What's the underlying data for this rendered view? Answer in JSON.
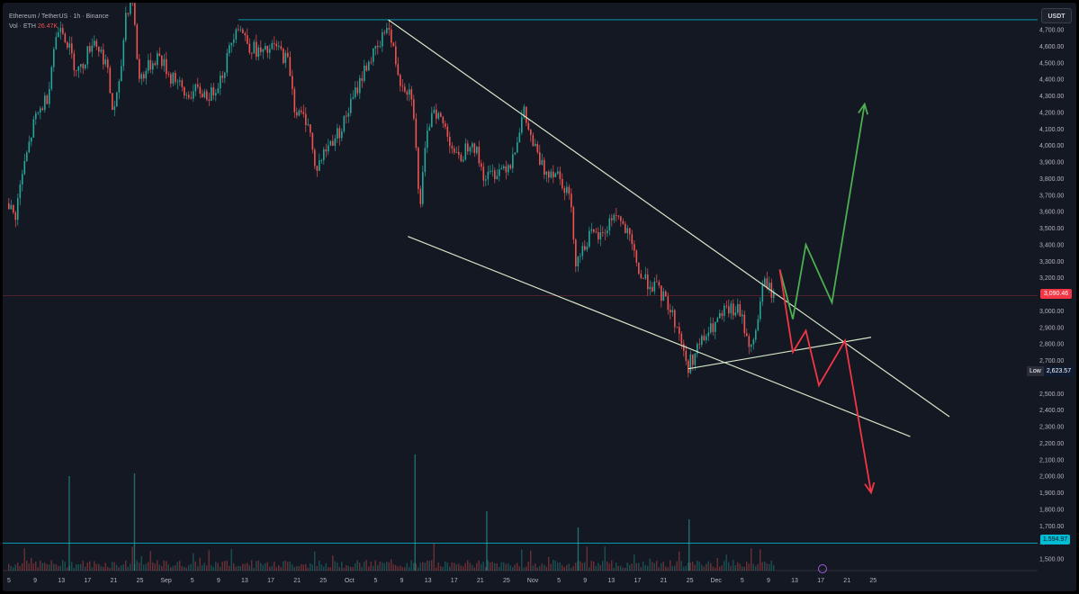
{
  "header": {
    "symbol": "Ethereum / TetherUS · 1h · Binance",
    "volume_label": "Vol · ETH",
    "volume_value": "26.47K"
  },
  "toolbar": {
    "currency_button": "USDT"
  },
  "price_axis": {
    "ticks": [
      "4,700.00",
      "4,600.00",
      "4,500.00",
      "4,400.00",
      "4,300.00",
      "4,200.00",
      "4,100.00",
      "4,000.00",
      "3,900.00",
      "3,800.00",
      "3,700.00",
      "3,600.00",
      "3,500.00",
      "3,400.00",
      "3,300.00",
      "3,200.00",
      "3,000.00",
      "2,900.00",
      "2,800.00",
      "2,700.00",
      "2,500.00",
      "2,400.00",
      "2,300.00",
      "2,200.00",
      "2,100.00",
      "2,000.00",
      "1,900.00",
      "1,800.00",
      "1,700.00",
      "1,600.00",
      "1,500.00"
    ],
    "current_price": "3,090.46",
    "low_label": "Low",
    "low_value": "2,623.57",
    "support_price": "1,594.97"
  },
  "time_axis": {
    "labels": [
      "5",
      "9",
      "13",
      "17",
      "21",
      "25",
      "Sep",
      "5",
      "9",
      "13",
      "17",
      "21",
      "25",
      "Oct",
      "5",
      "9",
      "13",
      "17",
      "21",
      "25",
      "Nov",
      "5",
      "9",
      "13",
      "17",
      "21",
      "25",
      "Dec",
      "5",
      "9",
      "13",
      "17",
      "21",
      "25"
    ]
  },
  "colors": {
    "background": "#141823",
    "candle_up": "#26a69a",
    "candle_down": "#ef5350",
    "trendline": "#d4e7c6",
    "bullish_arrow": "#4caf50",
    "bearish_arrow": "#f23645",
    "level_line": "#00bcd4",
    "current_price_line": "#f23645"
  },
  "chart_data": {
    "type": "candlestick",
    "symbol": "ETHUSDT",
    "interval": "1h",
    "exchange": "Binance",
    "y_range": [
      1450,
      4800
    ],
    "path": [
      [
        "Aug 5",
        3650
      ],
      [
        "Aug 6",
        3560
      ],
      [
        "Aug 7",
        3800
      ],
      [
        "Aug 9",
        4150
      ],
      [
        "Aug 11",
        4300
      ],
      [
        "Aug 12",
        4600
      ],
      [
        "Aug 13",
        4750
      ],
      [
        "Aug 15",
        4500
      ],
      [
        "Aug 16",
        4450
      ],
      [
        "Aug 18",
        4650
      ],
      [
        "Aug 20",
        4500
      ],
      [
        "Aug 21",
        4200
      ],
      [
        "Aug 22",
        4350
      ],
      [
        "Aug 23",
        4800
      ],
      [
        "Aug 24",
        4900
      ],
      [
        "Aug 25",
        4400
      ],
      [
        "Aug 26",
        4450
      ],
      [
        "Aug 28",
        4550
      ],
      [
        "Aug 30",
        4400
      ],
      [
        "Sep 1",
        4300
      ],
      [
        "Sep 3",
        4450
      ],
      [
        "Sep 5",
        4300
      ],
      [
        "Sep 7",
        4330
      ],
      [
        "Sep 9",
        4300
      ],
      [
        "Sep 11",
        4450
      ],
      [
        "Sep 13",
        4750
      ],
      [
        "Sep 15",
        4600
      ],
      [
        "Sep 17",
        4550
      ],
      [
        "Sep 19",
        4600
      ],
      [
        "Sep 21",
        4500
      ],
      [
        "Sep 22",
        4200
      ],
      [
        "Sep 24",
        4150
      ],
      [
        "Sep 25",
        3850
      ],
      [
        "Sep 27",
        4000
      ],
      [
        "Sep 29",
        4100
      ],
      [
        "Oct 1",
        4300
      ],
      [
        "Oct 3",
        4500
      ],
      [
        "Oct 5",
        4600
      ],
      [
        "Oct 6",
        4750
      ],
      [
        "Oct 8",
        4400
      ],
      [
        "Oct 10",
        4300
      ],
      [
        "Oct 11",
        3600
      ],
      [
        "Oct 12",
        4000
      ],
      [
        "Oct 13",
        4250
      ],
      [
        "Oct 15",
        4100
      ],
      [
        "Oct 17",
        3900
      ],
      [
        "Oct 19",
        4050
      ],
      [
        "Oct 21",
        3800
      ],
      [
        "Oct 23",
        3850
      ],
      [
        "Oct 25",
        3900
      ],
      [
        "Oct 27",
        4200
      ],
      [
        "Oct 28",
        4050
      ],
      [
        "Oct 30",
        3850
      ],
      [
        "Nov 1",
        3850
      ],
      [
        "Nov 3",
        3700
      ],
      [
        "Nov 4",
        3300
      ],
      [
        "Nov 6",
        3450
      ],
      [
        "Nov 8",
        3450
      ],
      [
        "Nov 10",
        3600
      ],
      [
        "Nov 12",
        3450
      ],
      [
        "Nov 14",
        3200
      ],
      [
        "Nov 16",
        3150
      ],
      [
        "Nov 18",
        3050
      ],
      [
        "Nov 20",
        2850
      ],
      [
        "Nov 21",
        2650
      ],
      [
        "Nov 23",
        2800
      ],
      [
        "Nov 25",
        2900
      ],
      [
        "Nov 27",
        3000
      ],
      [
        "Nov 29",
        3000
      ],
      [
        "Dec 1",
        2750
      ],
      [
        "Dec 2",
        3000
      ],
      [
        "Dec 3",
        3200
      ],
      [
        "Dec 4",
        3100
      ]
    ],
    "volume_spikes": [
      [
        "Aug 14",
        3.5
      ],
      [
        "Aug 24",
        3.6
      ],
      [
        "Oct 10",
        4.3
      ],
      [
        "Oct 21",
        2.2
      ],
      [
        "Nov 4",
        1.6
      ],
      [
        "Nov 21",
        1.9
      ]
    ],
    "horizontal_levels": [
      {
        "price": 4760,
        "from": "Sep 13",
        "style": "resistance"
      },
      {
        "price": 3090.46,
        "style": "current-price"
      },
      {
        "price": 1594.97,
        "style": "support"
      }
    ],
    "trendlines": [
      {
        "name": "falling-wedge-upper",
        "points": [
          [
            "Oct 6",
            4760
          ],
          [
            "Dec 31",
            2360
          ]
        ]
      },
      {
        "name": "falling-wedge-lower",
        "points": [
          [
            "Oct 9",
            3450
          ],
          [
            "Dec 25",
            2240
          ]
        ]
      },
      {
        "name": "short-term-support",
        "points": [
          [
            "Nov 21",
            2650
          ],
          [
            "Dec 19",
            2840
          ]
        ]
      }
    ],
    "projections": [
      {
        "scenario": "bullish",
        "points": [
          [
            "Dec 5",
            3250
          ],
          [
            "Dec 7",
            2950
          ],
          [
            "Dec 9",
            3400
          ],
          [
            "Dec 13",
            3050
          ],
          [
            "Dec 18",
            4250
          ]
        ]
      },
      {
        "scenario": "bearish",
        "points": [
          [
            "Dec 5",
            3250
          ],
          [
            "Dec 7",
            2750
          ],
          [
            "Dec 9",
            2880
          ],
          [
            "Dec 11",
            2550
          ],
          [
            "Dec 15",
            2820
          ],
          [
            "Dec 19",
            1900
          ]
        ]
      }
    ]
  }
}
